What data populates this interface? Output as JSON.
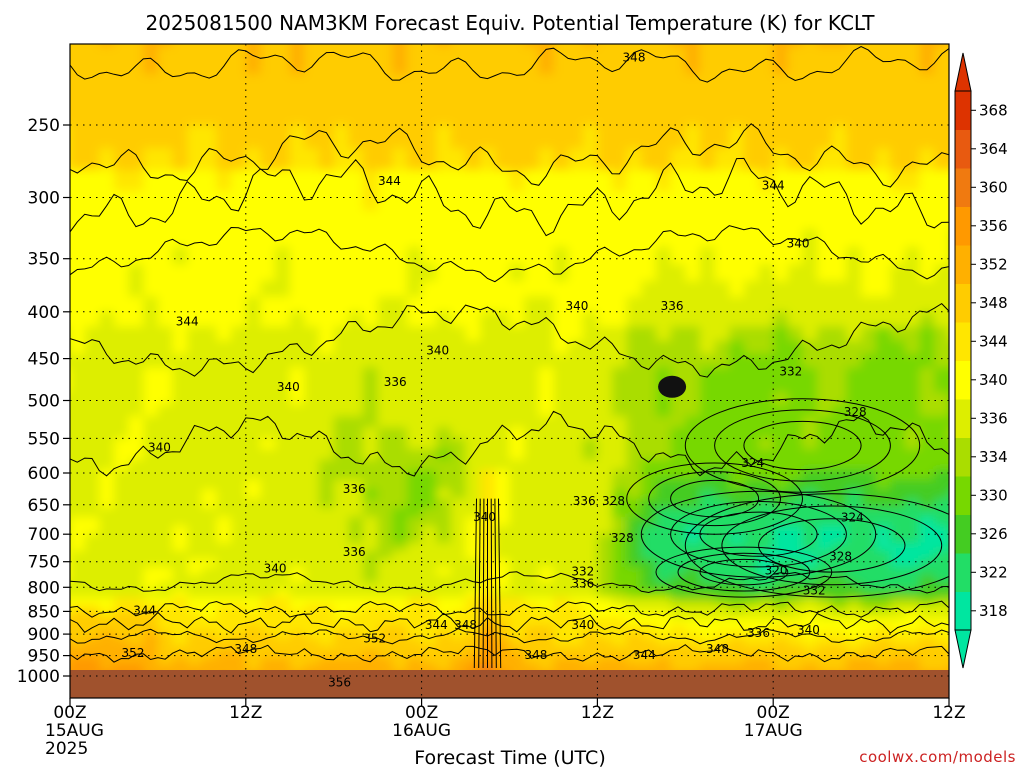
{
  "chart_data": {
    "type": "heatmap",
    "title": "2025081500 NAM3KM Forecast Equiv. Potential Temperature (K) for KCLT",
    "xlabel": "Forecast Time (UTC)",
    "ylabel": "",
    "x_ticks": [
      {
        "hour": 0,
        "lines": [
          "00Z",
          "15AUG",
          "2025"
        ]
      },
      {
        "hour": 12,
        "lines": [
          "12Z"
        ]
      },
      {
        "hour": 24,
        "lines": [
          "00Z",
          "16AUG"
        ]
      },
      {
        "hour": 36,
        "lines": [
          "12Z"
        ]
      },
      {
        "hour": 48,
        "lines": [
          "00Z",
          "17AUG"
        ]
      },
      {
        "hour": 60,
        "lines": [
          "12Z"
        ]
      }
    ],
    "xlim": [
      0,
      60
    ],
    "y_ticks": [
      250,
      300,
      350,
      400,
      450,
      500,
      550,
      600,
      650,
      700,
      750,
      800,
      850,
      900,
      950,
      1000
    ],
    "ylim": [
      1000,
      200
    ],
    "y_scale": "log",
    "grid": true,
    "colorbar_levels": [
      318,
      322,
      326,
      330,
      334,
      336,
      340,
      344,
      348,
      352,
      356,
      360,
      364,
      368
    ],
    "colorbar_colors": [
      "#00e6a0",
      "#22dd66",
      "#44cc22",
      "#77d800",
      "#aadd00",
      "#ddee00",
      "#ffff00",
      "#ffe600",
      "#ffcc00",
      "#ffb000",
      "#ff9900",
      "#f07a10",
      "#e85a10",
      "#dd3300"
    ],
    "contour_labels": [
      {
        "text": "348",
        "hour": 38.5,
        "pres": 211
      },
      {
        "text": "344",
        "hour": 21.8,
        "pres": 288
      },
      {
        "text": "344",
        "hour": 48.0,
        "pres": 291
      },
      {
        "text": "340",
        "hour": 49.7,
        "pres": 337
      },
      {
        "text": "344",
        "hour": 8.0,
        "pres": 410
      },
      {
        "text": "340",
        "hour": 34.6,
        "pres": 394
      },
      {
        "text": "336",
        "hour": 41.1,
        "pres": 394
      },
      {
        "text": "340",
        "hour": 25.1,
        "pres": 441
      },
      {
        "text": "340",
        "hour": 14.9,
        "pres": 483
      },
      {
        "text": "336",
        "hour": 22.2,
        "pres": 477
      },
      {
        "text": "332",
        "hour": 49.2,
        "pres": 465
      },
      {
        "text": "328",
        "hour": 53.6,
        "pres": 515
      },
      {
        "text": "340",
        "hour": 6.1,
        "pres": 563
      },
      {
        "text": "324",
        "hour": 46.6,
        "pres": 585
      },
      {
        "text": "336",
        "hour": 19.4,
        "pres": 625
      },
      {
        "text": "336",
        "hour": 35.1,
        "pres": 644
      },
      {
        "text": "328",
        "hour": 37.1,
        "pres": 644
      },
      {
        "text": "340",
        "hour": 28.3,
        "pres": 670
      },
      {
        "text": "324",
        "hour": 53.4,
        "pres": 671
      },
      {
        "text": "328",
        "hour": 37.7,
        "pres": 707
      },
      {
        "text": "336",
        "hour": 19.4,
        "pres": 732
      },
      {
        "text": "328",
        "hour": 52.6,
        "pres": 740
      },
      {
        "text": "340",
        "hour": 14.0,
        "pres": 763
      },
      {
        "text": "320",
        "hour": 48.2,
        "pres": 767
      },
      {
        "text": "332",
        "hour": 35.0,
        "pres": 769
      },
      {
        "text": "336",
        "hour": 35.0,
        "pres": 792
      },
      {
        "text": "332",
        "hour": 50.8,
        "pres": 806
      },
      {
        "text": "344",
        "hour": 5.1,
        "pres": 848
      },
      {
        "text": "344",
        "hour": 25.0,
        "pres": 880
      },
      {
        "text": "348",
        "hour": 27.0,
        "pres": 880
      },
      {
        "text": "340",
        "hour": 35.0,
        "pres": 880
      },
      {
        "text": "336",
        "hour": 47.0,
        "pres": 898
      },
      {
        "text": "340",
        "hour": 50.4,
        "pres": 891
      },
      {
        "text": "352",
        "hour": 20.8,
        "pres": 910
      },
      {
        "text": "352",
        "hour": 4.3,
        "pres": 944
      },
      {
        "text": "348",
        "hour": 12.0,
        "pres": 934
      },
      {
        "text": "348",
        "hour": 31.8,
        "pres": 948
      },
      {
        "text": "344",
        "hour": 39.2,
        "pres": 949
      },
      {
        "text": "348",
        "hour": 44.2,
        "pres": 934
      },
      {
        "text": "356",
        "hour": 18.4,
        "pres": 1016
      }
    ]
  },
  "credit": "coolwx.com/models"
}
